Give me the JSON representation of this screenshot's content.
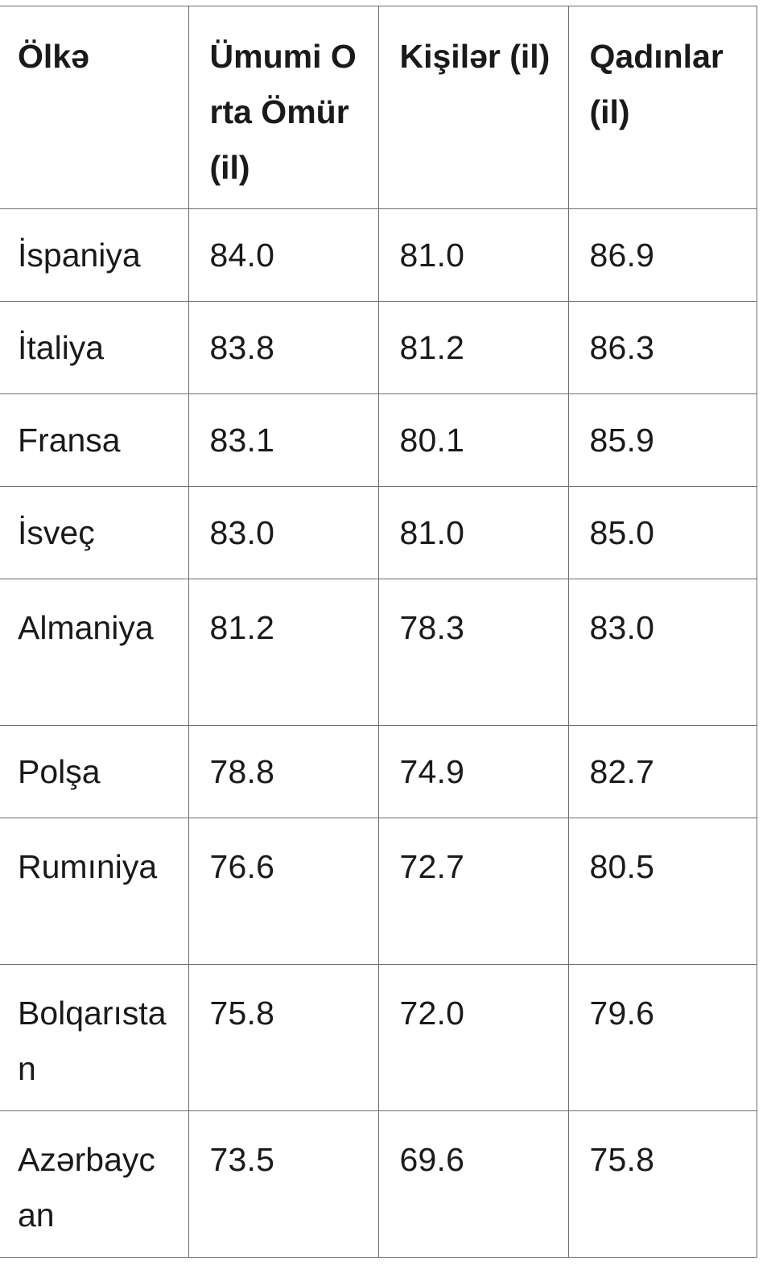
{
  "table": {
    "headers": [
      "Ölkə",
      "Ümumi Orta Ömür (il)",
      "Kişilər (il)",
      "Qadınlar (il)"
    ],
    "rows": [
      {
        "country": "İspaniya",
        "total": "84.0",
        "men": "81.0",
        "women": "86.9"
      },
      {
        "country": "İtaliya",
        "total": "83.8",
        "men": "81.2",
        "women": "86.3"
      },
      {
        "country": "Fransa",
        "total": "83.1",
        "men": "80.1",
        "women": "85.9"
      },
      {
        "country": "İsveç",
        "total": "83.0",
        "men": "81.0",
        "women": "85.0"
      },
      {
        "country": "Almaniya",
        "total": "81.2",
        "men": "78.3",
        "women": "83.0"
      },
      {
        "country": "Polşa",
        "total": "78.8",
        "men": "74.9",
        "women": "82.7"
      },
      {
        "country": "Rumıniya",
        "total": "76.6",
        "men": "72.7",
        "women": "80.5"
      },
      {
        "country": "Bolqarıstan",
        "total": "75.8",
        "men": "72.0",
        "women": "79.6"
      },
      {
        "country": "Azərbaycan",
        "total": "73.5",
        "men": "69.6",
        "women": "75.8"
      }
    ]
  }
}
